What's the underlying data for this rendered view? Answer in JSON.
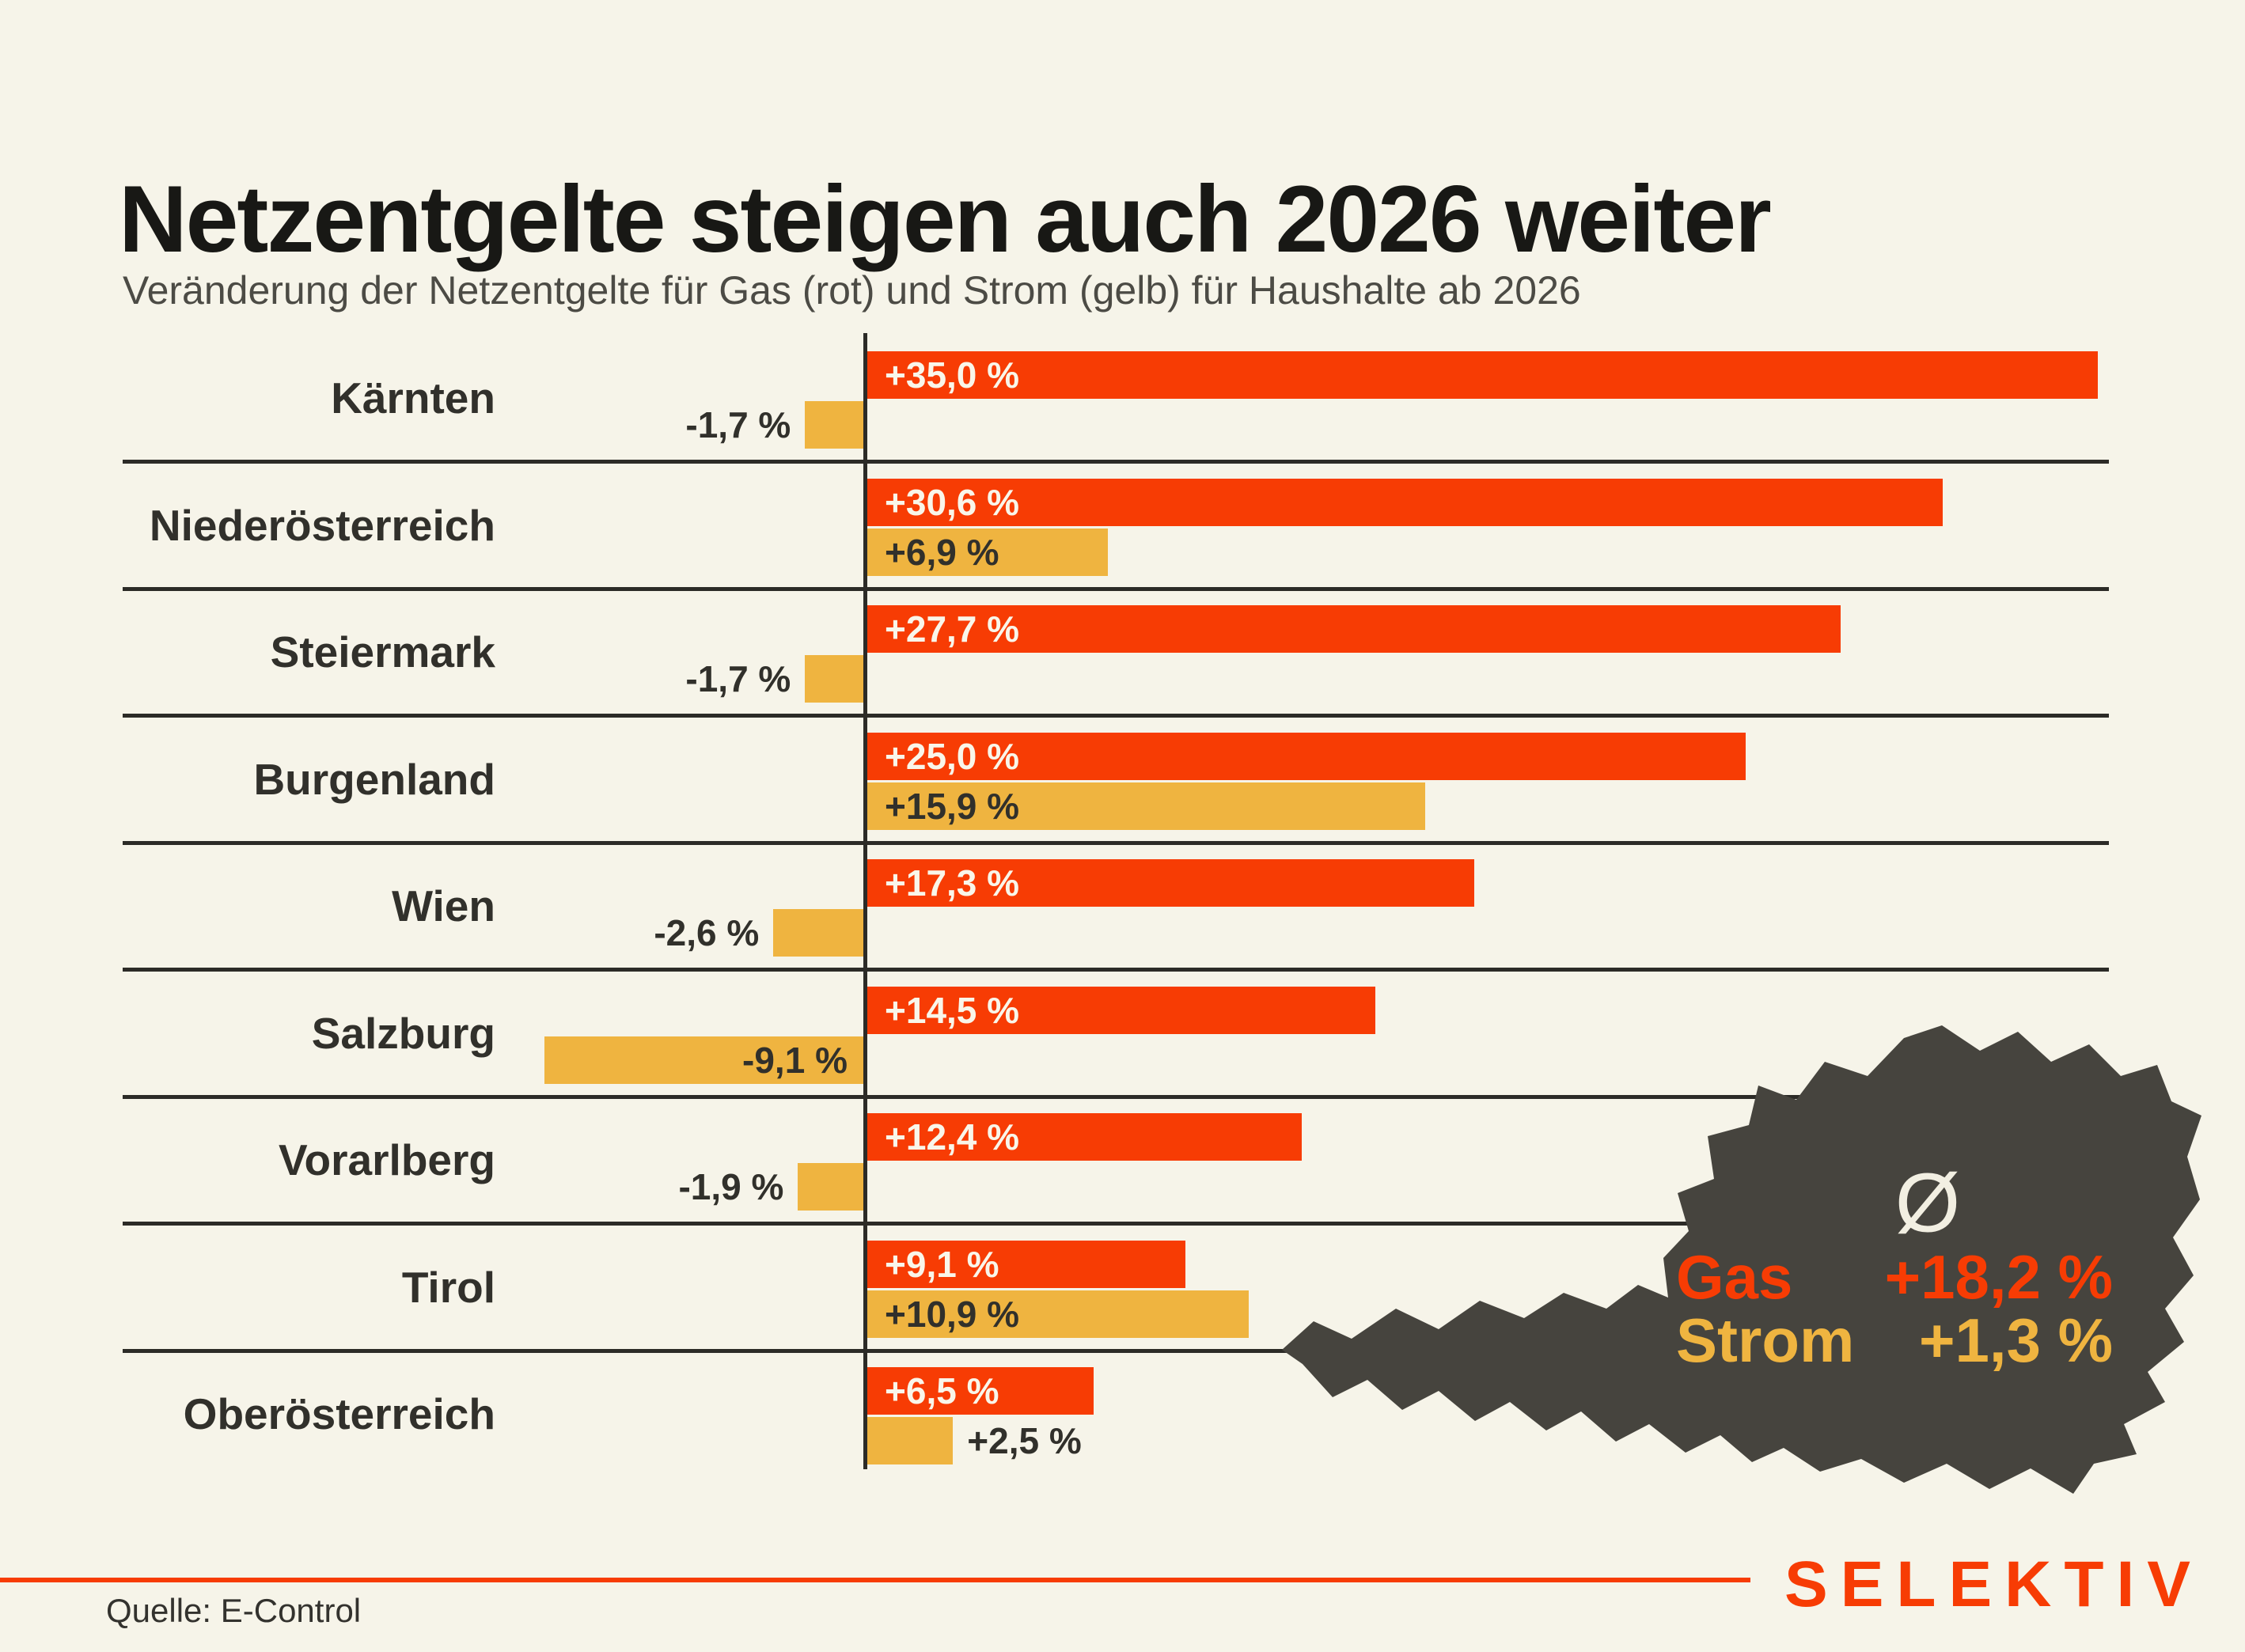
{
  "header": {
    "title": "Netzentgelte steigen auch 2026 weiter",
    "subtitle": "Veränderung der Netzentgelte für Gas (rot) und Strom (gelb) für Haushalte ab 2026"
  },
  "footer": {
    "source": "Quelle: E-Control",
    "brand": "SELEKTIV"
  },
  "colors": {
    "background": "#f6f4e9",
    "gas": "#f73c04",
    "strom": "#efb440",
    "ink": "#31302b",
    "subtitle_ink": "#4c4b45",
    "separator": "#2c2b27",
    "map_fill": "#46443e",
    "label_on_gas": "#f9f6ea",
    "accent": "#f73c04"
  },
  "chart_data": {
    "type": "bar",
    "orientation": "horizontal",
    "value_unit": "%",
    "decimal_separator": ",",
    "categories": [
      "Kärnten",
      "Niederösterreich",
      "Steiermark",
      "Burgenland",
      "Wien",
      "Salzburg",
      "Vorarlberg",
      "Tirol",
      "Oberösterreich"
    ],
    "series": [
      {
        "name": "Gas",
        "color_key": "gas",
        "values": [
          35.0,
          30.6,
          27.7,
          25.0,
          17.3,
          14.5,
          12.4,
          9.1,
          6.5
        ],
        "labels": [
          "+35,0 %",
          "+30,6 %",
          "+27,7 %",
          "+25,0 %",
          "+17,3 %",
          "+14,5 %",
          "+12,4 %",
          "+9,1 %",
          "+6,5 %"
        ]
      },
      {
        "name": "Strom",
        "color_key": "strom",
        "values": [
          -1.7,
          6.9,
          -1.7,
          15.9,
          -2.6,
          -9.1,
          -1.9,
          10.9,
          2.5
        ],
        "labels": [
          "-1,7 %",
          "+6,9 %",
          "-1,7 %",
          "+15,9 %",
          "-2,6 %",
          "-9,1 %",
          "-1,9 %",
          "+10,9 %",
          "+2,5 %"
        ]
      }
    ],
    "xlim": [
      -10,
      36
    ],
    "grid": "row-separators-only",
    "legend_position": "in-subtitle",
    "averages": {
      "symbol": "Ø",
      "gas_label": "Gas",
      "gas_value": "+18,2 %",
      "strom_label": "Strom",
      "strom_value": "+1,3 %"
    }
  }
}
